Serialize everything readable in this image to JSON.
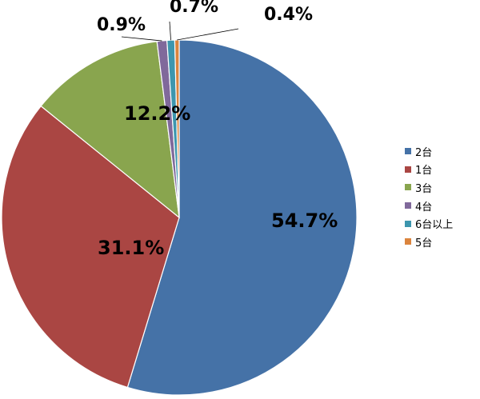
{
  "chart_data": {
    "type": "pie",
    "title": "",
    "legend_position": "right",
    "slices": [
      {
        "label": "2台",
        "value": 54.7,
        "display": "54.7%",
        "color": "#4572A7"
      },
      {
        "label": "1台",
        "value": 31.1,
        "display": "31.1%",
        "color": "#AA4643"
      },
      {
        "label": "3台",
        "value": 12.2,
        "display": "12.2%",
        "color": "#89A54E"
      },
      {
        "label": "4台",
        "value": 0.9,
        "display": "0.9%",
        "color": "#80699B"
      },
      {
        "label": "6台以上",
        "value": 0.7,
        "display": "0.7%",
        "color": "#3D96AE"
      },
      {
        "label": "5台",
        "value": 0.4,
        "display": "0.4%",
        "color": "#DB843D"
      }
    ]
  }
}
